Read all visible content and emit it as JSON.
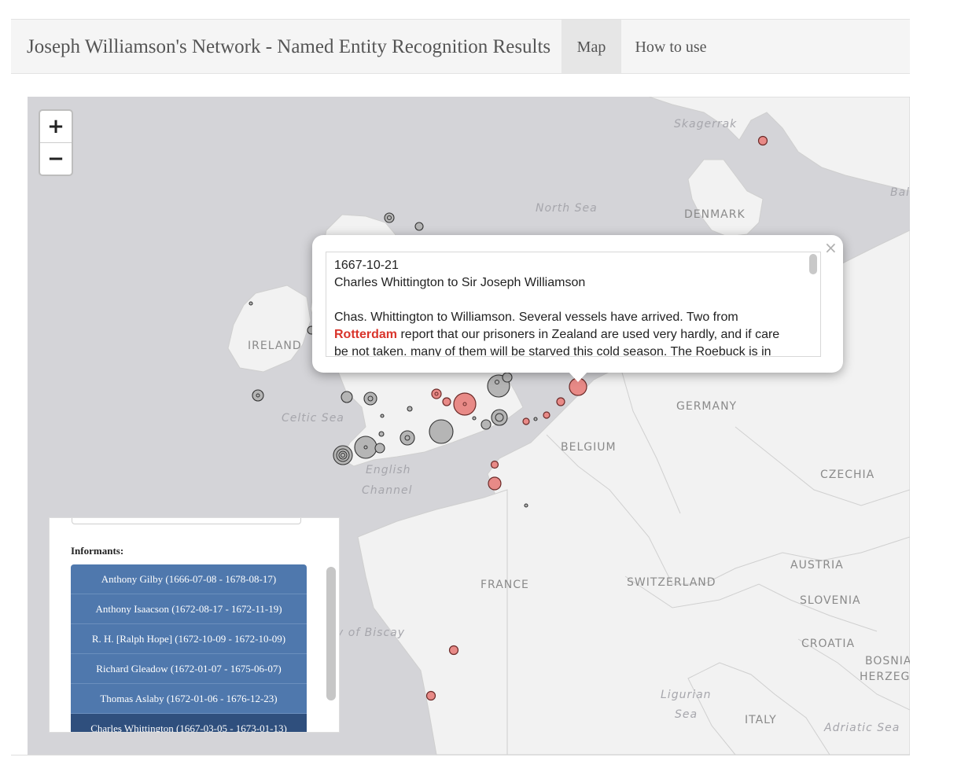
{
  "navbar": {
    "brand": "Joseph Williamson's Network - Named Entity Recognition Results",
    "tabs": [
      {
        "label": "Map",
        "active": true
      },
      {
        "label": "How to use",
        "active": false
      }
    ]
  },
  "map": {
    "country_labels": [
      "DENMARK",
      "IRELAND",
      "GERMANY",
      "BELGIUM",
      "CZECHIA",
      "FRANCE",
      "AUSTRIA",
      "SWITZERLAND",
      "SLOVENIA",
      "CROATIA",
      "BOSNIA",
      "HERZEG",
      "ITALY"
    ],
    "sea_labels": [
      "Skagerrak",
      "North Sea",
      "Celtic Sea",
      "English",
      "Channel",
      "y of Biscay",
      "Ligurian",
      "Sea",
      "Adriatic Sea",
      "Bal"
    ],
    "zoom_in": "+",
    "zoom_out": "−",
    "colors": {
      "land": "#f2f2f2",
      "water": "#d4d4d8",
      "marker_red": "#e88a87",
      "marker_grey": "#b5b5b5"
    }
  },
  "popup": {
    "close": "×",
    "date": "1667-10-21",
    "sender_recipient": "Charles Whittington to Sir Joseph Williamson",
    "text_before": "Chas. Whittington to Williamson. Several vessels have arrived. Two from",
    "highlight_place": "Rotterdam",
    "text_after": " report that our prisoners in Zealand are used very hardly, and if care",
    "text_last": "be not taken. many of them will be starved this cold season. The Roebuck is in"
  },
  "sidebar": {
    "heading": "Informants:",
    "informants": [
      "Anthony Gilby (1666-07-08 - 1678-08-17)",
      "Anthony Isaacson (1672-08-17 - 1672-11-19)",
      "R. H. [Ralph Hope] (1672-10-09 - 1672-10-09)",
      "Richard Gleadow (1672-01-07 - 1675-06-07)",
      "Thomas Aslaby (1672-01-06 - 1676-12-23)",
      "Charles Whittington (1667-03-05 - 1673-01-13)"
    ]
  }
}
